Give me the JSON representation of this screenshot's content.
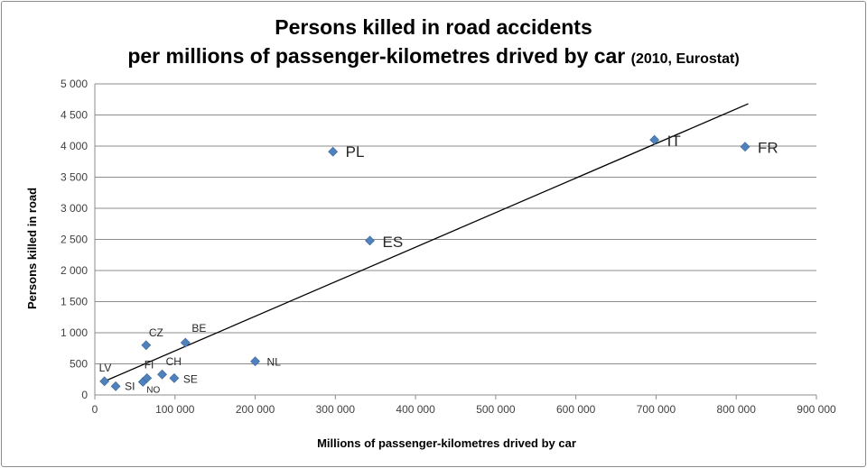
{
  "chart_data": {
    "type": "scatter",
    "title_line1": "Persons killed in road accidents",
    "title_line2": "per millions of passenger-kilometres drived by car",
    "title_suffix": "(2010, Eurostat)",
    "xlabel": "Millions of passenger-kilometres drived by car",
    "ylabel": "Persons killed in road",
    "xlim": [
      0,
      900000
    ],
    "ylim": [
      0,
      5000
    ],
    "xticks": [
      0,
      100000,
      200000,
      300000,
      400000,
      500000,
      600000,
      700000,
      800000,
      900000
    ],
    "yticks": [
      0,
      500,
      1000,
      1500,
      2000,
      2500,
      3000,
      3500,
      4000,
      4500,
      5000
    ],
    "xtick_labels": [
      "0",
      "100 000",
      "200 000",
      "300 000",
      "400 000",
      "500 000",
      "600 000",
      "700 000",
      "800 000",
      "900 000"
    ],
    "ytick_labels": [
      "0",
      "500",
      "1 000",
      "1 500",
      "2 000",
      "2 500",
      "3 000",
      "3 500",
      "4 000",
      "4 500",
      "5 000"
    ],
    "grid": "horizontal",
    "marker_color": "#4f81bd",
    "points": [
      {
        "label": "LV",
        "x": 12000,
        "y": 220
      },
      {
        "label": "SI",
        "x": 26000,
        "y": 140
      },
      {
        "label": "NO",
        "x": 60000,
        "y": 210
      },
      {
        "label": "FI",
        "x": 65000,
        "y": 270
      },
      {
        "label": "CZ",
        "x": 64000,
        "y": 800
      },
      {
        "label": "CH",
        "x": 84000,
        "y": 330
      },
      {
        "label": "SE",
        "x": 99000,
        "y": 270
      },
      {
        "label": "BE",
        "x": 113000,
        "y": 840
      },
      {
        "label": "NL",
        "x": 200000,
        "y": 540
      },
      {
        "label": "PL",
        "x": 297000,
        "y": 3910
      },
      {
        "label": "ES",
        "x": 343000,
        "y": 2480
      },
      {
        "label": "IT",
        "x": 698000,
        "y": 4100
      },
      {
        "label": "FR",
        "x": 811000,
        "y": 3990
      }
    ],
    "trendline": {
      "x": [
        12000,
        815000
      ],
      "y": [
        220,
        4680
      ]
    }
  }
}
